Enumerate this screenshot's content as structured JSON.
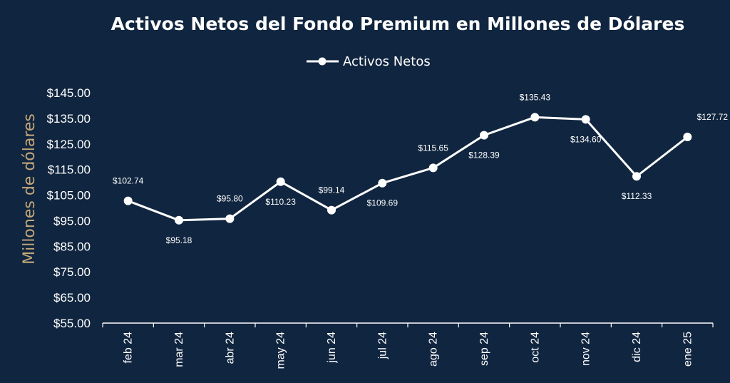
{
  "chart_data": {
    "type": "line",
    "title": "Activos Netos del Fondo Premium en Millones de Dólares",
    "ylabel": "Millones de dólares",
    "xlabel": "",
    "categories": [
      "feb 24",
      "mar 24",
      "abr 24",
      "may 24",
      "jun 24",
      "jul 24",
      "ago 24",
      "sep 24",
      "oct 24",
      "nov 24",
      "dic 24",
      "ene 25"
    ],
    "series": [
      {
        "name": "Activos Netos",
        "values": [
          102.74,
          95.18,
          95.8,
          110.23,
          99.14,
          109.69,
          115.65,
          128.39,
          135.43,
          134.6,
          112.33,
          127.72
        ],
        "labels": [
          "$102.74",
          "$95.18",
          "$95.80",
          "$110.23",
          "$99.14",
          "$109.69",
          "$115.65",
          "$128.39",
          "$135.43",
          "$134.60",
          "$112.33",
          "$127.72"
        ],
        "label_position": [
          "above",
          "below",
          "above",
          "below",
          "above",
          "below",
          "above",
          "below",
          "above",
          "below",
          "below",
          "above"
        ]
      }
    ],
    "ylim": [
      55,
      145
    ],
    "yticks": [
      "$55.00",
      "$65.00",
      "$75.00",
      "$85.00",
      "$95.00",
      "$105.00",
      "$115.00",
      "$125.00",
      "$135.00",
      "$145.00"
    ],
    "legend_position": "top-center",
    "grid": false,
    "colors": {
      "background": "#10253f",
      "line": "#ffffff",
      "text": "#ffffff",
      "ylabel": "#c3a77a"
    }
  }
}
